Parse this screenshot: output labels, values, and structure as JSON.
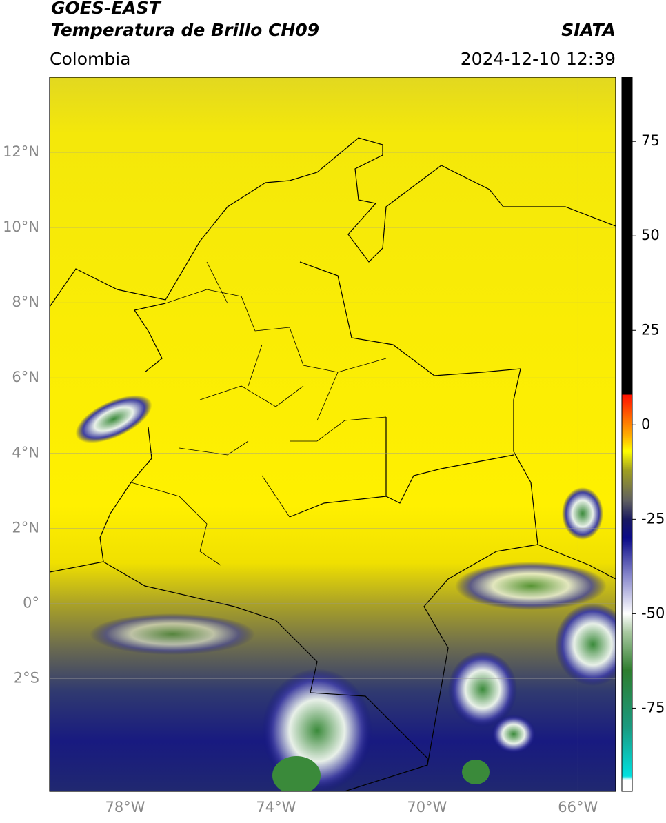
{
  "header": {
    "title": "GOES-EAST",
    "subtitle": "Temperatura de Brillo CH09",
    "source": "SIATA",
    "region": "Colombia",
    "datetime": "2024-12-10 12:39"
  },
  "map": {
    "xlim": [
      -80,
      -65
    ],
    "ylim": [
      -5,
      14
    ],
    "xticks": [
      {
        "value": -78,
        "label": "78°W"
      },
      {
        "value": -74,
        "label": "74°W"
      },
      {
        "value": -70,
        "label": "70°W"
      },
      {
        "value": -66,
        "label": "66°W"
      }
    ],
    "yticks": [
      {
        "value": 12,
        "label": "12°N"
      },
      {
        "value": 10,
        "label": "10°N"
      },
      {
        "value": 8,
        "label": "8°N"
      },
      {
        "value": 6,
        "label": "6°N"
      },
      {
        "value": 4,
        "label": "4°N"
      },
      {
        "value": 2,
        "label": "2°N"
      },
      {
        "value": 0,
        "label": "0°"
      },
      {
        "value": -2,
        "label": "2°S"
      }
    ],
    "grid": true
  },
  "colorbar": {
    "lim": [
      -97,
      92
    ],
    "ticks": [
      75,
      50,
      25,
      0,
      -25,
      -50,
      -75
    ],
    "stops": [
      {
        "value": -97,
        "color": "#ffffff"
      },
      {
        "value": -94,
        "color": "#ffffff"
      },
      {
        "value": -93,
        "color": "#00e0e0"
      },
      {
        "value": -80,
        "color": "#1a9a80"
      },
      {
        "value": -65,
        "color": "#2e7d2e"
      },
      {
        "value": -55,
        "color": "#a8c8a0"
      },
      {
        "value": -50,
        "color": "#ffffff"
      },
      {
        "value": -40,
        "color": "#8888cc"
      },
      {
        "value": -30,
        "color": "#0a0a88"
      },
      {
        "value": -25,
        "color": "#1a1a60"
      },
      {
        "value": -20,
        "color": "#606060"
      },
      {
        "value": -12,
        "color": "#a0a020"
      },
      {
        "value": -7,
        "color": "#ffff00"
      },
      {
        "value": -3,
        "color": "#ffb000"
      },
      {
        "value": 8,
        "color": "#ff1000"
      },
      {
        "value": 8,
        "color": "#000000"
      },
      {
        "value": 92,
        "color": "#000000"
      }
    ]
  }
}
